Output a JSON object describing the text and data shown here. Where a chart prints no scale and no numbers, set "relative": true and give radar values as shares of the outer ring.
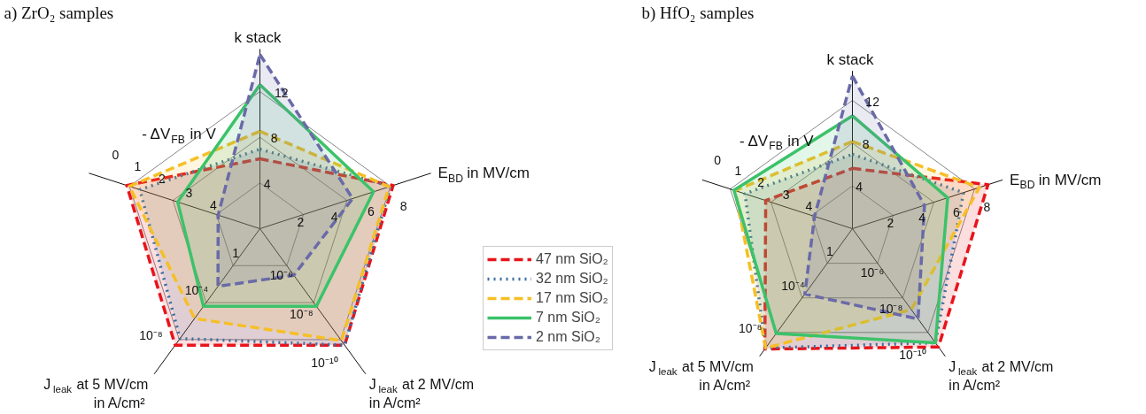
{
  "chart_data": [
    {
      "type": "radar",
      "title": "a) ZrO₂ samples",
      "relative": true,
      "grid": true,
      "legend": "right",
      "categories": [
        "k stack",
        "E$_{BD}$ in MV/cm",
        "J$_{leak}$ at 2 MV/cm\nin A/cm²",
        "J$_{leak}$ at 5 MV/cm\nin A/cm²",
        "- ΔV$_{FB}$ in V"
      ],
      "annotations": [
        "4",
        "8",
        "12",
        "2",
        "4",
        "6",
        "8",
        "10⁻⁶",
        "10⁻⁸",
        "10⁻¹⁰",
        "1",
        "10⁻⁴",
        "10⁻⁸",
        "4",
        "3",
        "2",
        "1",
        "0"
      ],
      "series": [
        {
          "name": "47 nm SiO₂",
          "color": "#e8141c",
          "line_style": "dashed",
          "values": [
            0.51,
            1.02,
            1.05,
            1.05,
            1.02
          ]
        },
        {
          "name": "32 nm SiO₂",
          "color": "#3a6f9f",
          "line_style": "dotted",
          "values": [
            0.58,
            1.0,
            1.05,
            0.99,
            0.92
          ]
        },
        {
          "name": "17 nm SiO₂",
          "color": "#f6bf26",
          "line_style": "dashed",
          "values": [
            0.71,
            0.99,
            1.01,
            0.81,
            1.0
          ]
        },
        {
          "name": "7 nm SiO₂",
          "color": "#3cc26a",
          "line_style": "solid",
          "values": [
            1.05,
            0.87,
            0.7,
            0.7,
            0.63
          ]
        },
        {
          "name": "2 nm SiO₂",
          "color": "#6a6aa8",
          "line_style": "dashed",
          "values": [
            1.27,
            0.71,
            0.42,
            0.52,
            0.32
          ]
        }
      ]
    },
    {
      "type": "radar",
      "title": "b) HfO₂ samples",
      "relative": true,
      "grid": true,
      "categories": [
        "k stack",
        "E$_{BD}$ in MV/cm",
        "J$_{leak}$ at 2 MV/cm\nin A/cm²",
        "J$_{leak}$ at 5 MV/cm\nin A/cm²",
        "- ΔV$_{FB}$ in V"
      ],
      "annotations": [
        "4",
        "8",
        "12",
        "2",
        "4",
        "6",
        "8",
        "10⁻⁶",
        "10⁻⁸",
        "10⁻¹⁰",
        "1",
        "10⁻⁴",
        "10⁻⁸",
        "4",
        "3",
        "2",
        "1",
        "0"
      ],
      "series": [
        {
          "color": "#e8141c",
          "line_style": "dashed",
          "values": [
            0.47,
            1.11,
            1.14,
            1.16,
            0.71
          ]
        },
        {
          "color": "#3a6f9f",
          "line_style": "dotted",
          "values": [
            0.58,
            0.91,
            1.1,
            1.15,
            0.88
          ]
        },
        {
          "color": "#f6bf26",
          "line_style": "dashed",
          "values": [
            0.68,
            1.04,
            0.78,
            1.15,
            0.96
          ]
        },
        {
          "color": "#3cc26a",
          "line_style": "solid",
          "values": [
            0.88,
            0.78,
            1.1,
            1.01,
            0.97
          ]
        },
        {
          "color": "#6a6aa8",
          "line_style": "dashed",
          "values": [
            1.19,
            0.59,
            0.87,
            0.63,
            0.31
          ]
        }
      ]
    }
  ]
}
